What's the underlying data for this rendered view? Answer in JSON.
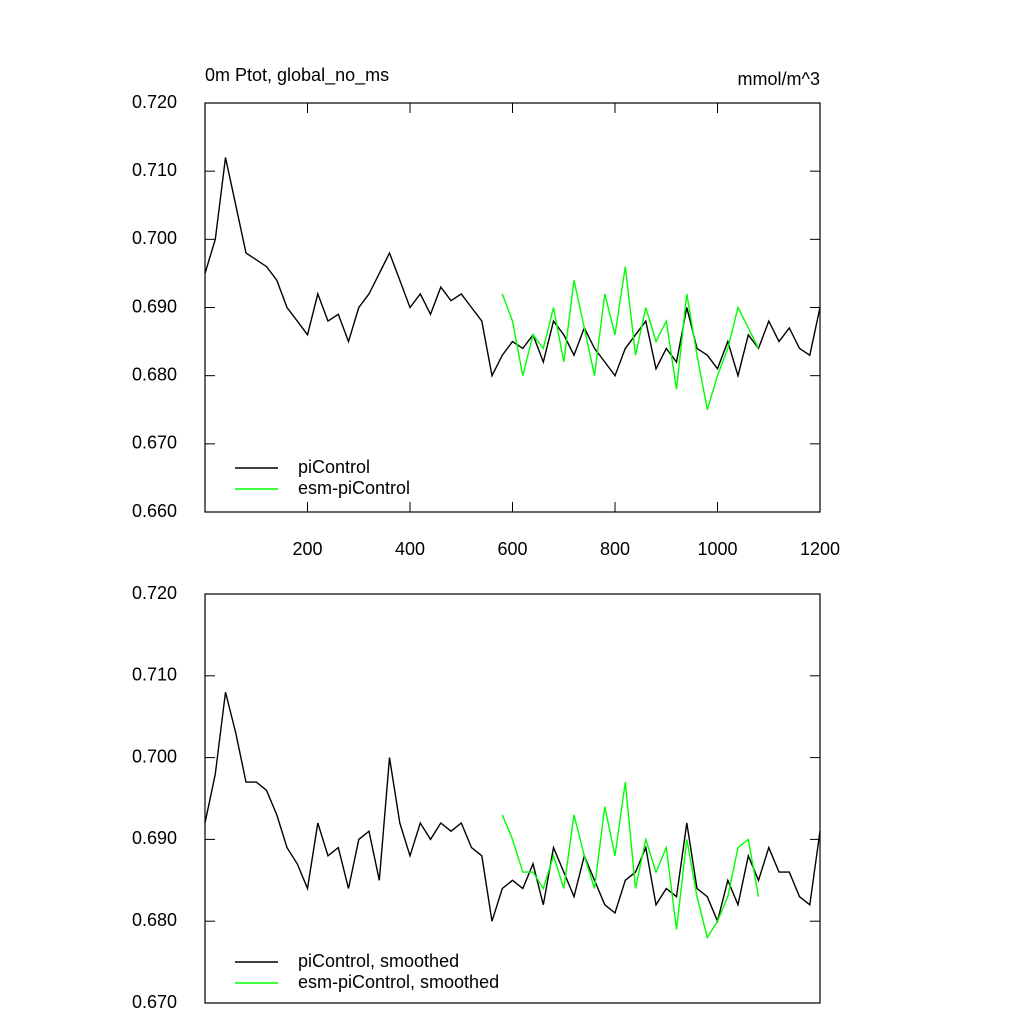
{
  "chart_data": [
    {
      "type": "line",
      "title": "0m Ptot, global_no_ms",
      "units": "mmol/m^3",
      "xlim": [
        0,
        1200
      ],
      "xticks": [
        200,
        400,
        600,
        800,
        1000,
        1200
      ],
      "ylim": [
        0.66,
        0.72
      ],
      "yticks": [
        {
          "value": 0.66,
          "label": "0.660"
        },
        {
          "value": 0.67,
          "label": "0.670"
        },
        {
          "value": 0.68,
          "label": "0.680"
        },
        {
          "value": 0.69,
          "label": "0.690"
        },
        {
          "value": 0.7,
          "label": "0.700"
        },
        {
          "value": 0.71,
          "label": "0.710"
        },
        {
          "value": 0.72,
          "label": "0.720"
        }
      ],
      "series": [
        {
          "name": "piControl",
          "color": "#000000",
          "x": [
            0,
            20,
            40,
            60,
            80,
            100,
            120,
            140,
            160,
            180,
            200,
            220,
            240,
            260,
            280,
            300,
            320,
            340,
            360,
            380,
            400,
            420,
            440,
            460,
            480,
            500,
            520,
            540,
            560,
            580,
            600,
            620,
            640,
            660,
            680,
            700,
            720,
            740,
            760,
            780,
            800,
            820,
            840,
            860,
            880,
            900,
            920,
            940,
            960,
            980,
            1000,
            1020,
            1040,
            1060,
            1080,
            1100,
            1120,
            1140,
            1160,
            1180,
            1200
          ],
          "values": [
            0.695,
            0.7,
            0.712,
            0.705,
            0.698,
            0.697,
            0.696,
            0.694,
            0.69,
            0.688,
            0.686,
            0.692,
            0.688,
            0.689,
            0.685,
            0.69,
            0.692,
            0.695,
            0.698,
            0.694,
            0.69,
            0.692,
            0.689,
            0.693,
            0.691,
            0.692,
            0.69,
            0.688,
            0.68,
            0.683,
            0.685,
            0.684,
            0.686,
            0.682,
            0.688,
            0.686,
            0.683,
            0.687,
            0.684,
            0.682,
            0.68,
            0.684,
            0.686,
            0.688,
            0.681,
            0.684,
            0.682,
            0.69,
            0.684,
            0.683,
            0.681,
            0.685,
            0.68,
            0.686,
            0.684,
            0.688,
            0.685,
            0.687,
            0.684,
            0.683,
            0.69
          ]
        },
        {
          "name": "esm-piControl",
          "color": "#00ff00",
          "x": [
            580,
            600,
            620,
            640,
            660,
            680,
            700,
            720,
            740,
            760,
            780,
            800,
            820,
            840,
            860,
            880,
            900,
            920,
            940,
            960,
            980,
            1000,
            1020,
            1040,
            1060,
            1080
          ],
          "values": [
            0.692,
            0.688,
            0.68,
            0.686,
            0.684,
            0.69,
            0.682,
            0.694,
            0.687,
            0.68,
            0.692,
            0.686,
            0.696,
            0.683,
            0.69,
            0.685,
            0.688,
            0.678,
            0.692,
            0.683,
            0.675,
            0.68,
            0.684,
            0.69,
            0.687,
            0.684
          ]
        }
      ]
    },
    {
      "type": "line",
      "xlim": [
        0,
        1200
      ],
      "ylim": [
        0.67,
        0.72
      ],
      "yticks": [
        {
          "value": 0.67,
          "label": "0.670"
        },
        {
          "value": 0.68,
          "label": "0.680"
        },
        {
          "value": 0.69,
          "label": "0.690"
        },
        {
          "value": 0.7,
          "label": "0.700"
        },
        {
          "value": 0.71,
          "label": "0.710"
        },
        {
          "value": 0.72,
          "label": "0.720"
        }
      ],
      "series": [
        {
          "name": "piControl, smoothed",
          "color": "#000000",
          "x": [
            0,
            20,
            40,
            60,
            80,
            100,
            120,
            140,
            160,
            180,
            200,
            220,
            240,
            260,
            280,
            300,
            320,
            340,
            360,
            380,
            400,
            420,
            440,
            460,
            480,
            500,
            520,
            540,
            560,
            580,
            600,
            620,
            640,
            660,
            680,
            700,
            720,
            740,
            760,
            780,
            800,
            820,
            840,
            860,
            880,
            900,
            920,
            940,
            960,
            980,
            1000,
            1020,
            1040,
            1060,
            1080,
            1100,
            1120,
            1140,
            1160,
            1180,
            1200
          ],
          "values": [
            0.692,
            0.698,
            0.708,
            0.703,
            0.697,
            0.697,
            0.696,
            0.693,
            0.689,
            0.687,
            0.684,
            0.692,
            0.688,
            0.689,
            0.684,
            0.69,
            0.691,
            0.685,
            0.7,
            0.692,
            0.688,
            0.692,
            0.69,
            0.692,
            0.691,
            0.692,
            0.689,
            0.688,
            0.68,
            0.684,
            0.685,
            0.684,
            0.687,
            0.682,
            0.689,
            0.686,
            0.683,
            0.688,
            0.685,
            0.682,
            0.681,
            0.685,
            0.686,
            0.689,
            0.682,
            0.684,
            0.683,
            0.692,
            0.684,
            0.683,
            0.68,
            0.685,
            0.682,
            0.688,
            0.685,
            0.689,
            0.686,
            0.686,
            0.683,
            0.682,
            0.691
          ]
        },
        {
          "name": "esm-piControl, smoothed",
          "color": "#00ff00",
          "x": [
            580,
            600,
            620,
            640,
            660,
            680,
            700,
            720,
            740,
            760,
            780,
            800,
            820,
            840,
            860,
            880,
            900,
            920,
            940,
            960,
            980,
            1000,
            1020,
            1040,
            1060,
            1080
          ],
          "values": [
            0.693,
            0.69,
            0.686,
            0.686,
            0.684,
            0.688,
            0.684,
            0.693,
            0.688,
            0.684,
            0.694,
            0.688,
            0.697,
            0.684,
            0.69,
            0.686,
            0.689,
            0.679,
            0.69,
            0.683,
            0.678,
            0.68,
            0.683,
            0.689,
            0.69,
            0.683
          ]
        }
      ]
    }
  ]
}
